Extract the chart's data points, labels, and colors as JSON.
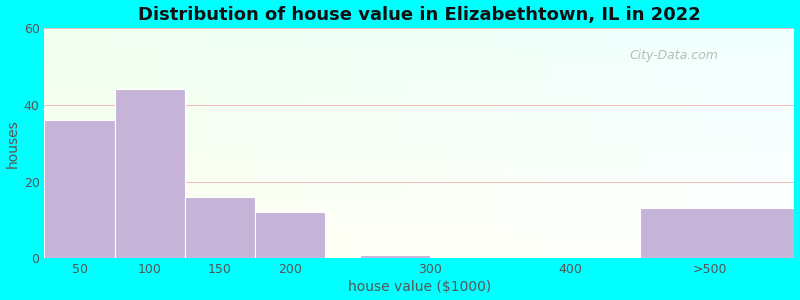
{
  "title": "Distribution of house value in Elizabethtown, IL in 2022",
  "xlabel": "house value ($1000)",
  "ylabel": "houses",
  "bar_labels": [
    "50",
    "100",
    "150",
    "200",
    "300",
    "400",
    ">500"
  ],
  "bar_heights": [
    36,
    44,
    16,
    12,
    1,
    0,
    13
  ],
  "bar_color": "#c5b3d8",
  "bar_edgecolor": "#ffffff",
  "ylim": [
    0,
    60
  ],
  "yticks": [
    0,
    20,
    40,
    60
  ],
  "bg_outer": "#00ffff",
  "grid_color": "#f5b8b8",
  "title_fontsize": 13,
  "axis_label_fontsize": 10,
  "tick_fontsize": 9,
  "watermark_text": "City-Data.com",
  "bar_left_edges": [
    25,
    75,
    125,
    175,
    250,
    375,
    450
  ],
  "bar_widths": [
    50,
    50,
    50,
    50,
    50,
    50,
    110
  ],
  "xlim": [
    25,
    560
  ],
  "xtick_positions": [
    50,
    100,
    150,
    200,
    300,
    400,
    500
  ],
  "xtick_labels": [
    "50",
    "100",
    "150",
    "200",
    "300",
    "400",
    ">500"
  ]
}
